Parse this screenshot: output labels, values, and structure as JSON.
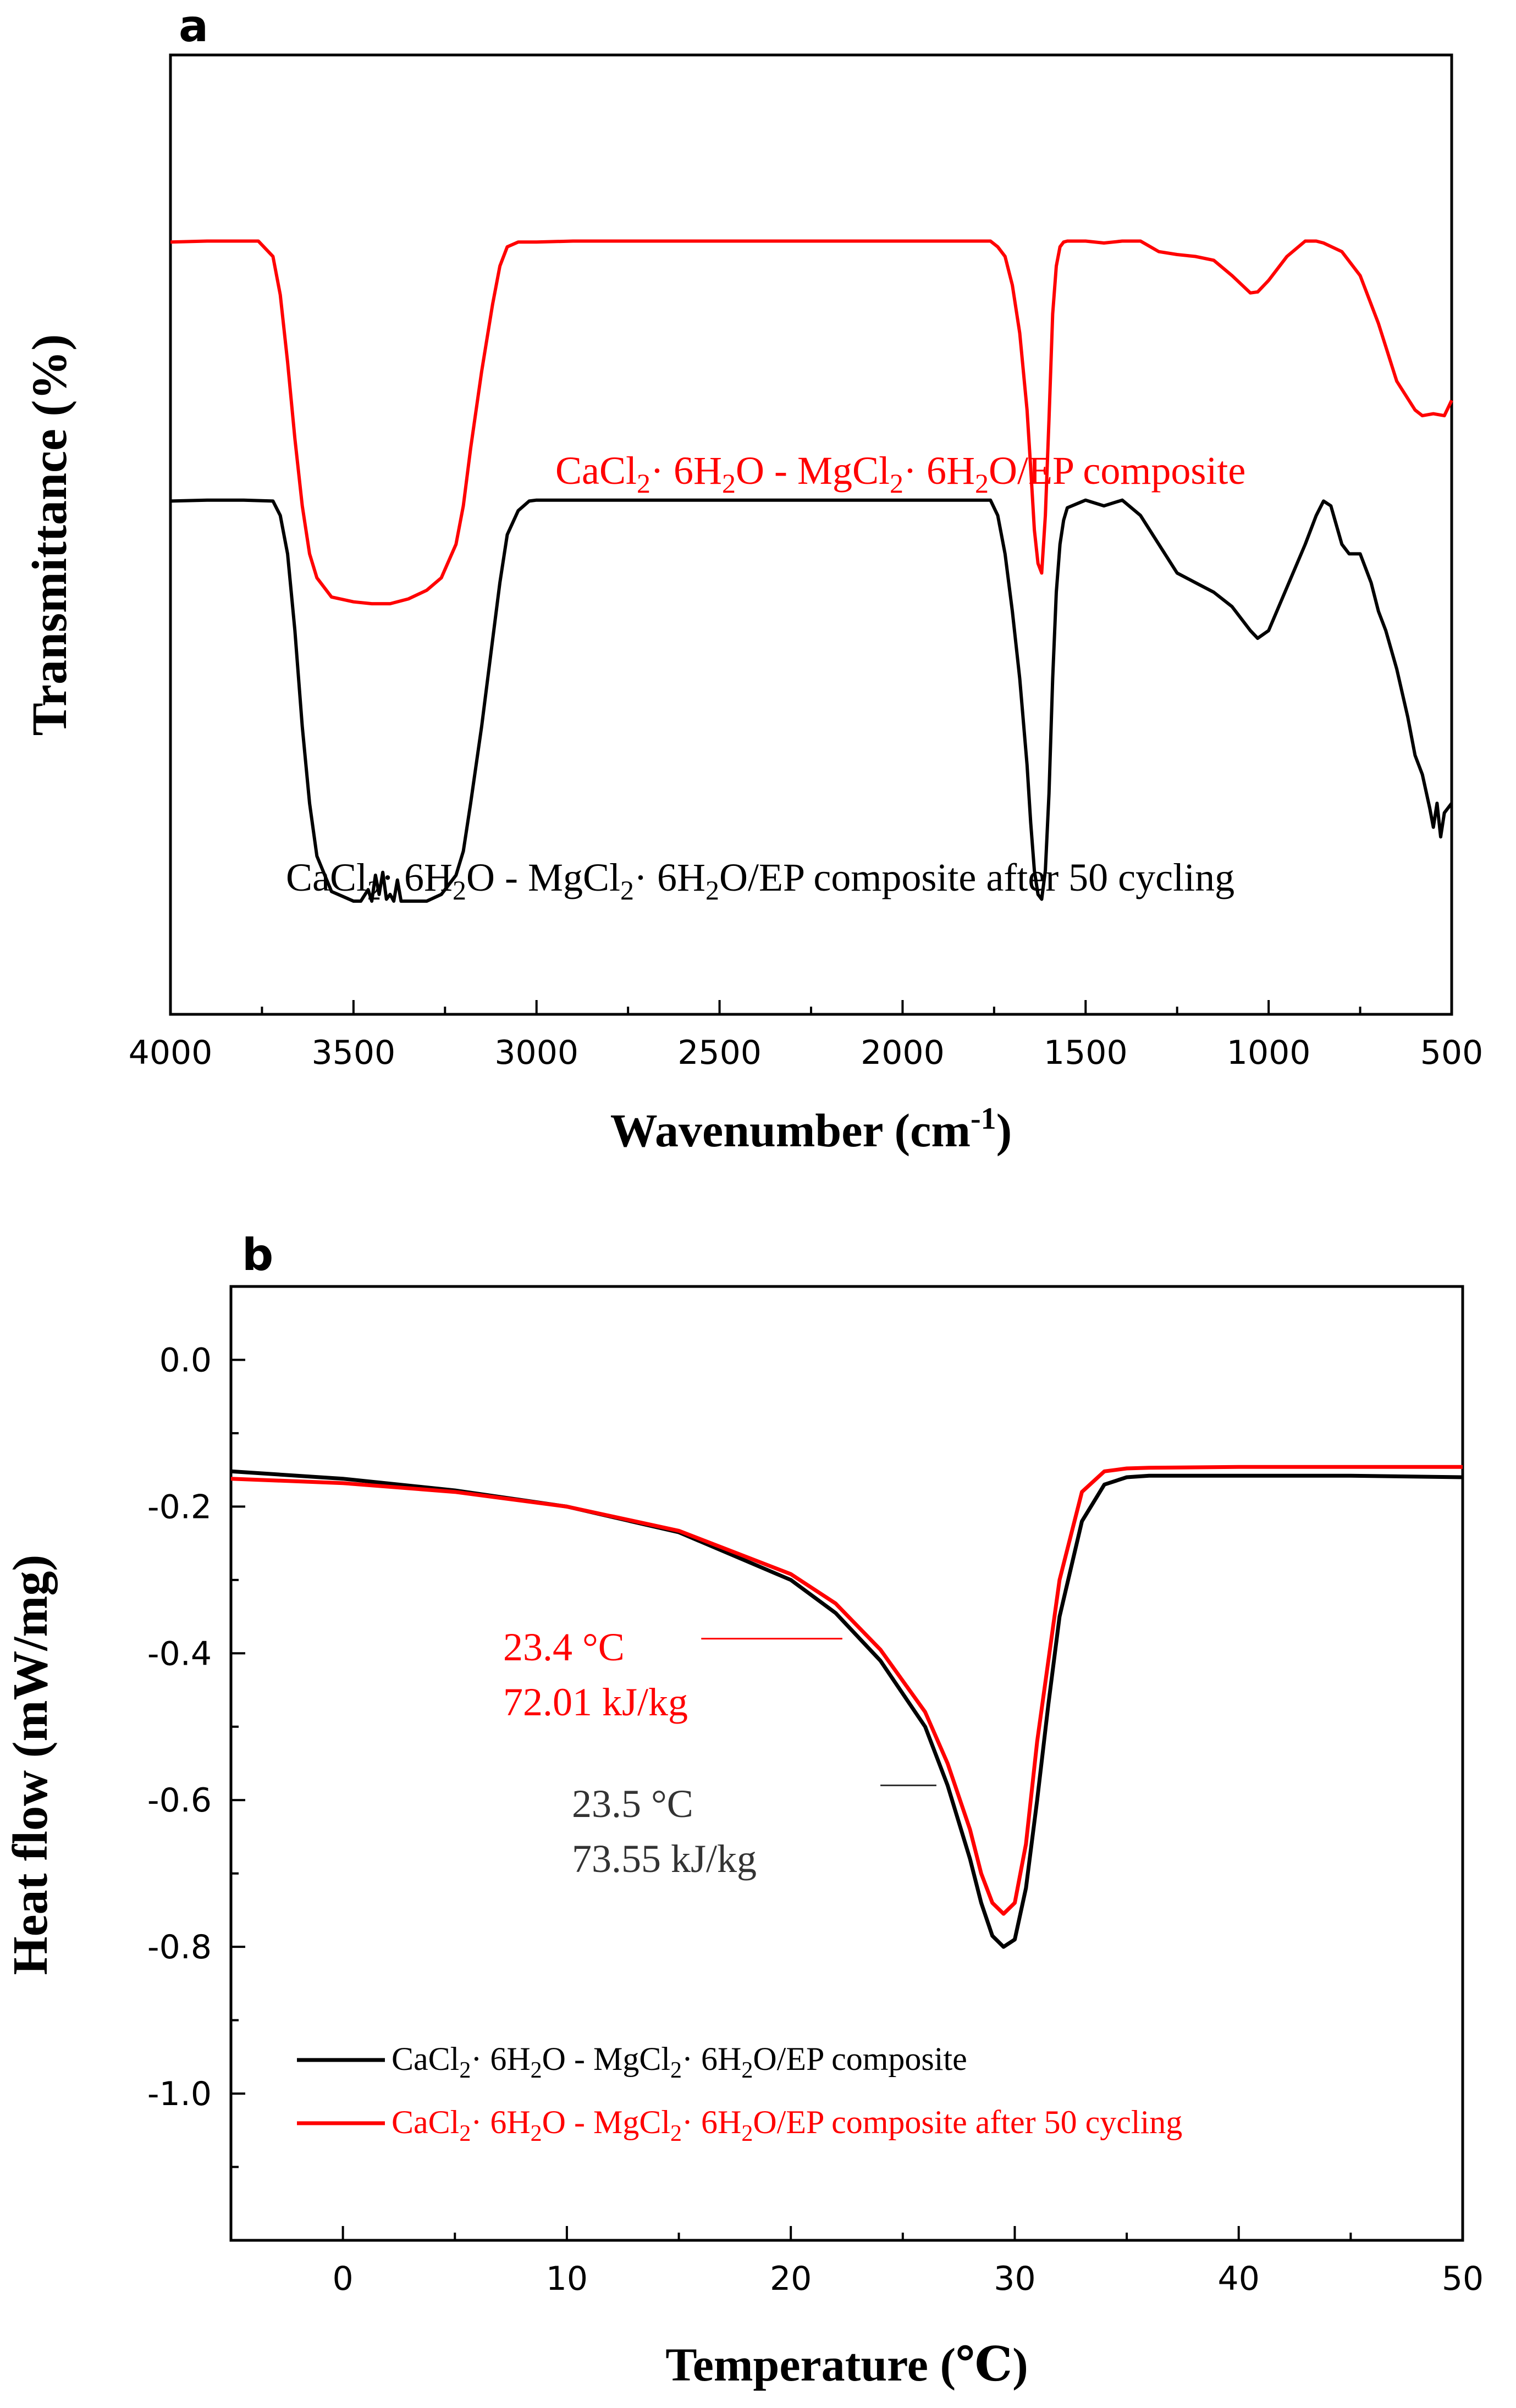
{
  "chart_data": [
    {
      "panel_label": "a",
      "type": "line",
      "xlabel": "Wavenumber (cm",
      "xlabel_sup": "-1",
      "xlabel_close": ")",
      "ylabel": "Transmittance (%)",
      "xlim": [
        4000,
        500
      ],
      "ylim": [
        0,
        1
      ],
      "x_ticks": [
        "4000",
        "3500",
        "3000",
        "2500",
        "2000",
        "1500",
        "1000",
        "500"
      ],
      "series": [
        {
          "name": "CaCl2·6H2O - MgCl2·6H2O/EP composite",
          "label_parts": [
            "CaCl",
            "2",
            "·  6H",
            "2",
            "O - MgCl",
            "2",
            "·  6H",
            "2",
            "O/EP composite"
          ],
          "color": "#ff0000",
          "x": [
            4000,
            3900,
            3800,
            3760,
            3720,
            3700,
            3680,
            3660,
            3640,
            3620,
            3600,
            3560,
            3500,
            3450,
            3400,
            3350,
            3300,
            3260,
            3220,
            3200,
            3180,
            3150,
            3120,
            3100,
            3080,
            3050,
            3020,
            3000,
            2900,
            2500,
            2000,
            1800,
            1760,
            1740,
            1720,
            1700,
            1680,
            1660,
            1650,
            1640,
            1630,
            1620,
            1610,
            1600,
            1590,
            1580,
            1570,
            1560,
            1550,
            1500,
            1450,
            1400,
            1350,
            1300,
            1250,
            1200,
            1150,
            1100,
            1050,
            1030,
            1000,
            950,
            900,
            870,
            850,
            800,
            750,
            700,
            650,
            600,
            580,
            550,
            520,
            500
          ],
          "y": [
            0.805,
            0.806,
            0.806,
            0.806,
            0.79,
            0.75,
            0.68,
            0.6,
            0.53,
            0.48,
            0.455,
            0.435,
            0.43,
            0.428,
            0.428,
            0.433,
            0.442,
            0.455,
            0.49,
            0.53,
            0.59,
            0.67,
            0.74,
            0.78,
            0.8,
            0.805,
            0.805,
            0.805,
            0.806,
            0.806,
            0.806,
            0.806,
            0.806,
            0.8,
            0.79,
            0.76,
            0.71,
            0.63,
            0.57,
            0.505,
            0.47,
            0.46,
            0.52,
            0.62,
            0.73,
            0.78,
            0.8,
            0.805,
            0.806,
            0.806,
            0.804,
            0.806,
            0.806,
            0.795,
            0.792,
            0.79,
            0.786,
            0.77,
            0.752,
            0.753,
            0.765,
            0.79,
            0.806,
            0.806,
            0.804,
            0.795,
            0.77,
            0.72,
            0.66,
            0.63,
            0.624,
            0.626,
            0.624,
            0.64
          ]
        },
        {
          "name": "CaCl2·6H2O - MgCl2·6H2O/EP composite after 50 cycling",
          "label_parts": [
            "CaCl",
            "2",
            "·  6H",
            "2",
            "O - MgCl",
            "2",
            "·  6H",
            "2",
            "O/EP composite after 50 cycling"
          ],
          "color": "#000000",
          "x": [
            4000,
            3900,
            3800,
            3720,
            3700,
            3680,
            3660,
            3640,
            3620,
            3600,
            3560,
            3500,
            3480,
            3460,
            3450,
            3440,
            3430,
            3420,
            3410,
            3400,
            3390,
            3380,
            3370,
            3350,
            3300,
            3260,
            3220,
            3200,
            3180,
            3150,
            3120,
            3100,
            3080,
            3050,
            3020,
            3000,
            2900,
            2500,
            2000,
            1800,
            1760,
            1740,
            1720,
            1700,
            1680,
            1660,
            1650,
            1640,
            1630,
            1620,
            1610,
            1600,
            1590,
            1580,
            1570,
            1560,
            1550,
            1500,
            1450,
            1400,
            1350,
            1300,
            1250,
            1200,
            1150,
            1100,
            1050,
            1030,
            1000,
            950,
            900,
            870,
            850,
            830,
            800,
            780,
            750,
            720,
            700,
            680,
            650,
            620,
            600,
            580,
            560,
            550,
            540,
            530,
            520,
            500
          ],
          "y": [
            0.535,
            0.536,
            0.536,
            0.535,
            0.52,
            0.48,
            0.4,
            0.3,
            0.22,
            0.165,
            0.128,
            0.118,
            0.118,
            0.13,
            0.118,
            0.145,
            0.125,
            0.148,
            0.12,
            0.125,
            0.118,
            0.14,
            0.118,
            0.118,
            0.118,
            0.125,
            0.145,
            0.17,
            0.22,
            0.3,
            0.39,
            0.45,
            0.5,
            0.525,
            0.535,
            0.536,
            0.536,
            0.536,
            0.536,
            0.536,
            0.536,
            0.52,
            0.48,
            0.42,
            0.35,
            0.26,
            0.2,
            0.15,
            0.125,
            0.12,
            0.15,
            0.23,
            0.35,
            0.44,
            0.49,
            0.515,
            0.528,
            0.536,
            0.53,
            0.536,
            0.52,
            0.49,
            0.46,
            0.45,
            0.44,
            0.425,
            0.4,
            0.392,
            0.4,
            0.445,
            0.49,
            0.52,
            0.535,
            0.53,
            0.49,
            0.48,
            0.48,
            0.45,
            0.42,
            0.4,
            0.36,
            0.31,
            0.27,
            0.25,
            0.215,
            0.195,
            0.22,
            0.185,
            0.21,
            0.22
          ]
        }
      ]
    },
    {
      "panel_label": "b",
      "type": "line",
      "xlabel": "Temperature (℃)",
      "ylabel": "Heat flow (mW/mg)",
      "xlim": [
        -5,
        50
      ],
      "ylim": [
        -1.2,
        0.1
      ],
      "x_ticks": [
        0,
        10,
        20,
        30,
        40,
        50
      ],
      "x_tick_labels": [
        "0",
        "10",
        "20",
        "30",
        "40",
        "50"
      ],
      "y_ticks": [
        0.0,
        -0.2,
        -0.4,
        -0.6,
        -0.8,
        -1.0
      ],
      "y_tick_labels": [
        "0.0",
        "-0.2",
        "-0.4",
        "-0.6",
        "-0.8",
        "-1.0"
      ],
      "series": [
        {
          "name": "CaCl2·6H2O - MgCl2·6H2O/EP composite",
          "label_parts": [
            "CaCl",
            "2",
            "·  6H",
            "2",
            "O - MgCl",
            "2",
            "·  6H",
            "2",
            "O/EP composite"
          ],
          "color": "#000000",
          "x": [
            -5,
            0,
            5,
            10,
            15,
            20,
            22,
            24,
            26,
            27,
            28,
            28.5,
            29,
            29.5,
            30,
            30.5,
            31,
            31.5,
            32,
            33,
            34,
            35,
            36,
            40,
            45,
            50
          ],
          "y": [
            -0.152,
            -0.162,
            -0.178,
            -0.2,
            -0.235,
            -0.3,
            -0.345,
            -0.41,
            -0.5,
            -0.58,
            -0.68,
            -0.74,
            -0.785,
            -0.8,
            -0.79,
            -0.72,
            -0.6,
            -0.47,
            -0.35,
            -0.22,
            -0.17,
            -0.16,
            -0.158,
            -0.158,
            -0.158,
            -0.16
          ]
        },
        {
          "name": "CaCl2·6H2O - MgCl2·6H2O/EP composite after 50 cycling",
          "label_parts": [
            "CaCl",
            "2",
            "·  6H",
            "2",
            "O - MgCl",
            "2",
            "·  6H",
            "2",
            "O/EP composite after 50 cycling"
          ],
          "color": "#ff0000",
          "x": [
            -5,
            0,
            5,
            10,
            15,
            20,
            22,
            24,
            26,
            27,
            28,
            28.5,
            29,
            29.5,
            30,
            30.5,
            31,
            32,
            33,
            34,
            35,
            36,
            40,
            45,
            50
          ],
          "y": [
            -0.162,
            -0.168,
            -0.18,
            -0.2,
            -0.233,
            -0.292,
            -0.332,
            -0.395,
            -0.48,
            -0.55,
            -0.64,
            -0.7,
            -0.74,
            -0.755,
            -0.74,
            -0.66,
            -0.52,
            -0.3,
            -0.18,
            -0.152,
            -0.148,
            -0.147,
            -0.146,
            -0.146,
            -0.146
          ]
        }
      ],
      "annotations": [
        {
          "text_line1": "23.4  °C",
          "text_line2": "72.01 kJ/kg",
          "color": "#ff0000",
          "leader_start_x": 16,
          "leader_end_x": 22.3,
          "leader_y": -0.38
        },
        {
          "text_line1": "23.5  °C",
          "text_line2": "73.55 kJ/kg",
          "color": "#333333",
          "leader_start_x": 24,
          "leader_end_x": 26.5,
          "leader_y": -0.58
        }
      ]
    }
  ]
}
